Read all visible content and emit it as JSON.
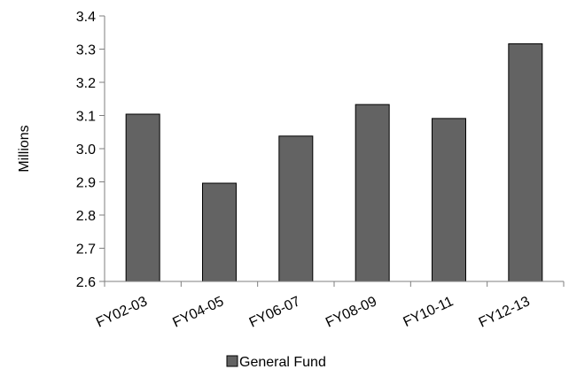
{
  "chart_data": {
    "type": "bar",
    "categories": [
      "FY02-03",
      "FY04-05",
      "FY06-07",
      "FY08-09",
      "FY10-11",
      "FY12-13"
    ],
    "series": [
      {
        "name": "General Fund",
        "values": [
          3.104,
          2.896,
          3.038,
          3.133,
          3.091,
          3.316
        ]
      }
    ],
    "ylabel": "Millions",
    "xlabel": "",
    "title": "",
    "ylim": [
      2.6,
      3.4
    ],
    "yticks": [
      "2.6",
      "2.7",
      "2.8",
      "2.9",
      "3.0",
      "3.1",
      "3.2",
      "3.3",
      "3.4"
    ],
    "grid": false,
    "legend_position": "bottom-center",
    "colors": {
      "bar": "#636363",
      "bar_stroke": "#000000",
      "axis": "#7f7f7f"
    }
  }
}
